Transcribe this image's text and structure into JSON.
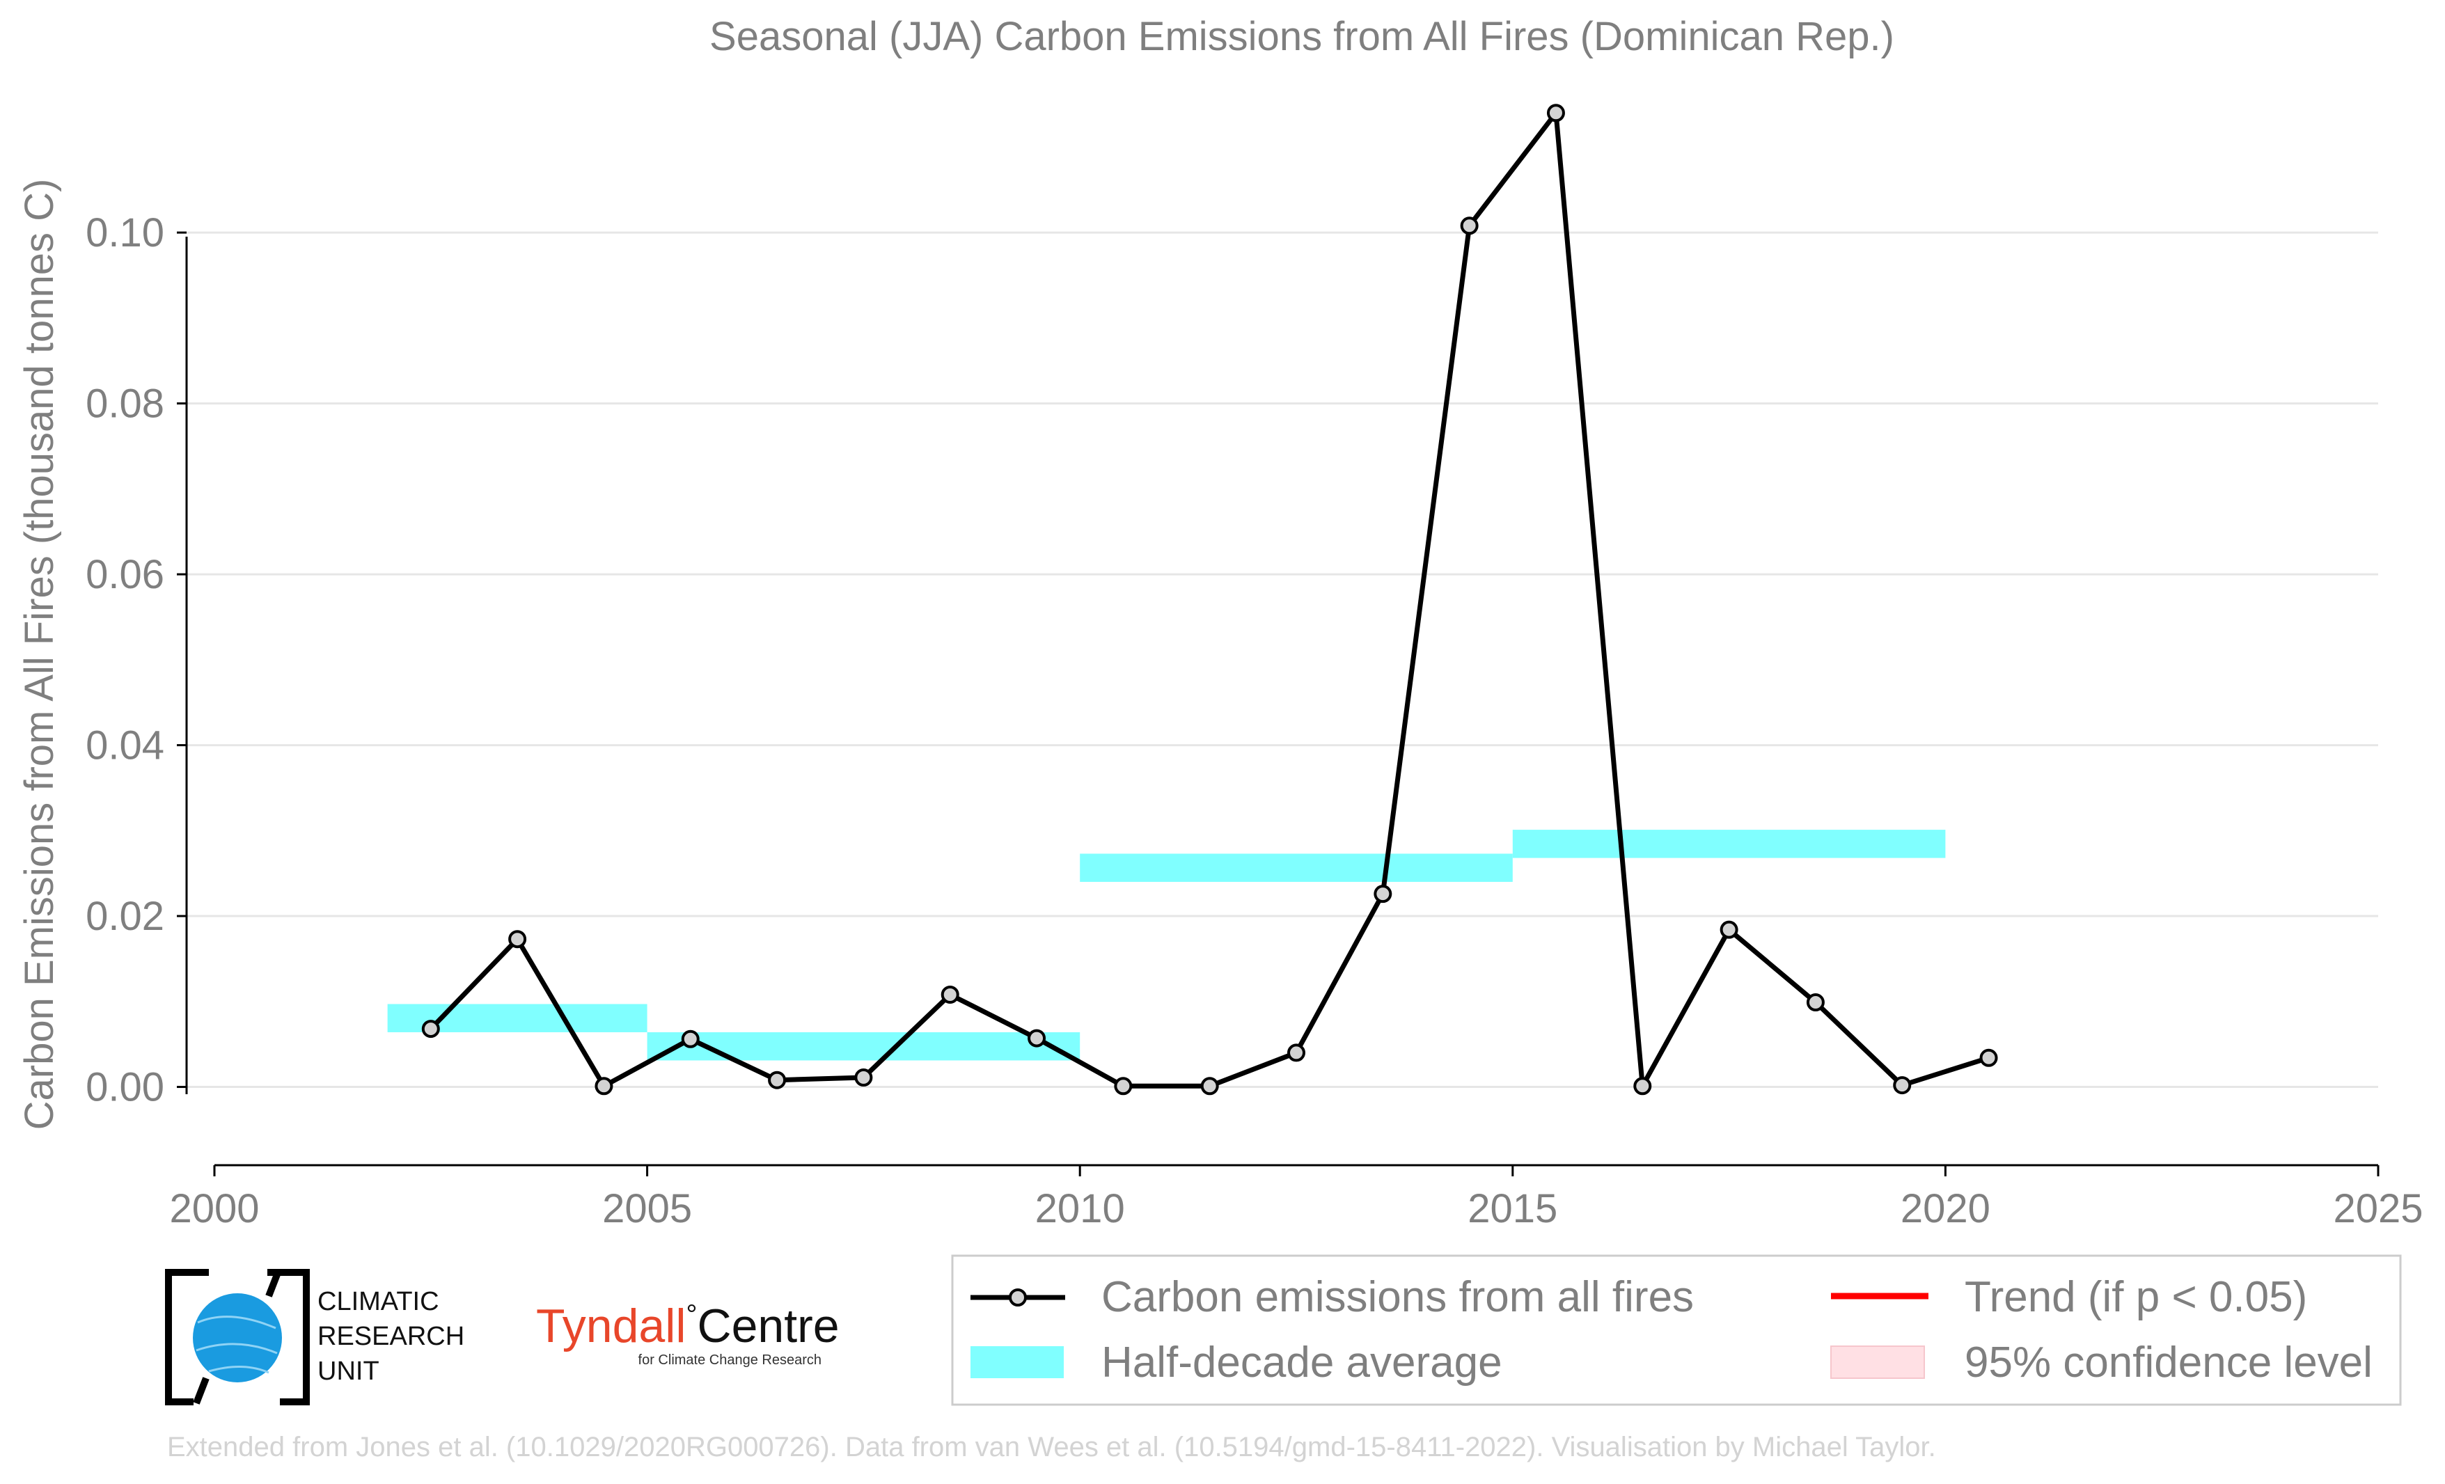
{
  "chart_data": {
    "type": "line",
    "title": "Seasonal (JJA) Carbon Emissions from All Fires (Dominican Rep.)",
    "xlabel": "",
    "ylabel": "Carbon Emissions from All Fires (thousand tonnes C)",
    "xlim": [
      2000,
      2025
    ],
    "ylim": [
      -0.009,
      0.115
    ],
    "x_ticks": [
      2000,
      2005,
      2010,
      2015,
      2020,
      2025
    ],
    "y_ticks": [
      0.0,
      0.02,
      0.04,
      0.06,
      0.08,
      0.1
    ],
    "grid": "horizontal",
    "legend_position": "bottom-right, below plot",
    "series": [
      {
        "name": "Carbon emissions from all fires",
        "x": [
          2002.5,
          2003.5,
          2004.5,
          2005.5,
          2006.5,
          2007.5,
          2008.5,
          2009.5,
          2010.5,
          2011.5,
          2012.5,
          2013.5,
          2014.5,
          2015.5,
          2016.5,
          2017.5,
          2018.5,
          2019.5,
          2020.5
        ],
        "y": [
          0.0068,
          0.0173,
          0.0001,
          0.0056,
          0.0008,
          0.0011,
          0.0108,
          0.0057,
          0.0001,
          0.0001,
          0.004,
          0.0226,
          0.1008,
          0.114,
          0.0001,
          0.0184,
          0.0099,
          0.0002,
          0.0034
        ],
        "color": "#000000",
        "marker_fill": "#d3d3d3"
      },
      {
        "name": "Half-decade average",
        "type": "bar-range",
        "segments": [
          {
            "x0": 2002,
            "x1": 2005,
            "y0": 0.0064,
            "y1": 0.0097
          },
          {
            "x0": 2005,
            "x1": 2010,
            "y0": 0.0031,
            "y1": 0.0064
          },
          {
            "x0": 2010,
            "x1": 2015,
            "y0": 0.024,
            "y1": 0.0273
          },
          {
            "x0": 2015,
            "x1": 2020,
            "y0": 0.0268,
            "y1": 0.0301
          }
        ],
        "color": "#80ffff"
      }
    ],
    "legend": [
      {
        "label": "Carbon emissions from all fires",
        "kind": "line-marker",
        "color": "#000000"
      },
      {
        "label": "Trend (if p < 0.05)",
        "kind": "line",
        "color": "#ff0000"
      },
      {
        "label": "Half-decade average",
        "kind": "patch",
        "color": "#80ffff"
      },
      {
        "label": "95% confidence level",
        "kind": "patch",
        "color": "#ffe0e4"
      }
    ]
  },
  "logos": {
    "cru_text": [
      "CLIMATIC",
      "RESEARCH",
      "UNIT"
    ],
    "tyndall_name": "Tyndall",
    "tyndall_degree": "°",
    "tyndall_centre": "Centre",
    "tyndall_sub": "for Climate Change Research"
  },
  "credit": "Extended from Jones et al. (10.1029/2020RG000726). Data from van Wees et al. (10.5194/gmd-15-8411-2022). Visualisation by Michael Taylor."
}
